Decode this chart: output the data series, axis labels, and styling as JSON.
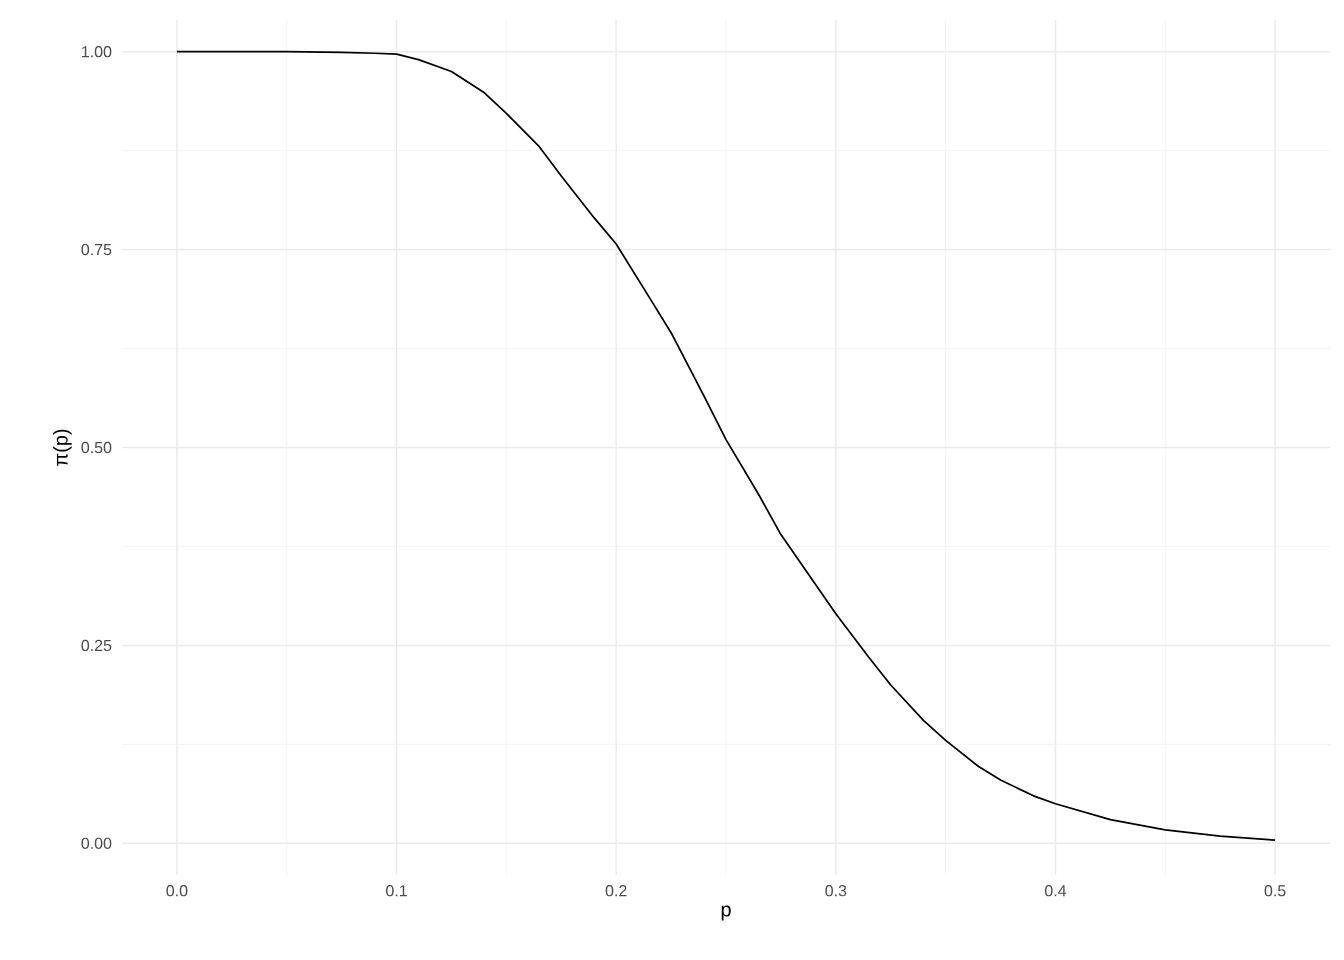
{
  "chart_data": {
    "type": "line",
    "xlabel": "p",
    "ylabel": "π(p)",
    "x": [
      0,
      0.025,
      0.05,
      0.075,
      0.09,
      0.1,
      0.11,
      0.125,
      0.14,
      0.15,
      0.165,
      0.175,
      0.19,
      0.2,
      0.215,
      0.225,
      0.24,
      0.25,
      0.265,
      0.275,
      0.29,
      0.3,
      0.315,
      0.325,
      0.34,
      0.35,
      0.365,
      0.375,
      0.39,
      0.4,
      0.425,
      0.45,
      0.475,
      0.5
    ],
    "series": [
      {
        "color": "#000000",
        "values": [
          1.0,
          1.0,
          1.0,
          0.999,
          0.998,
          0.997,
          0.99,
          0.975,
          0.948,
          0.922,
          0.88,
          0.843,
          0.79,
          0.757,
          0.69,
          0.645,
          0.565,
          0.51,
          0.44,
          0.39,
          0.33,
          0.29,
          0.235,
          0.2,
          0.155,
          0.13,
          0.097,
          0.08,
          0.06,
          0.05,
          0.03,
          0.017,
          0.009,
          0.004
        ]
      }
    ],
    "xlim": [
      -0.025,
      0.525
    ],
    "ylim": [
      -0.04,
      1.04
    ],
    "xticks": [
      {
        "value": 0,
        "label": "0.0"
      },
      0.1,
      0.2,
      0.3,
      0.4,
      {
        "value": 0.5,
        "label": "0.5"
      }
    ],
    "yticks": [
      {
        "value": 0,
        "label": "0.00"
      },
      0.25,
      {
        "value": 0.5,
        "label": "0.50"
      },
      0.75,
      {
        "value": 1,
        "label": "1.00"
      }
    ],
    "grid": true,
    "marker": "none",
    "line_style": "solid"
  }
}
